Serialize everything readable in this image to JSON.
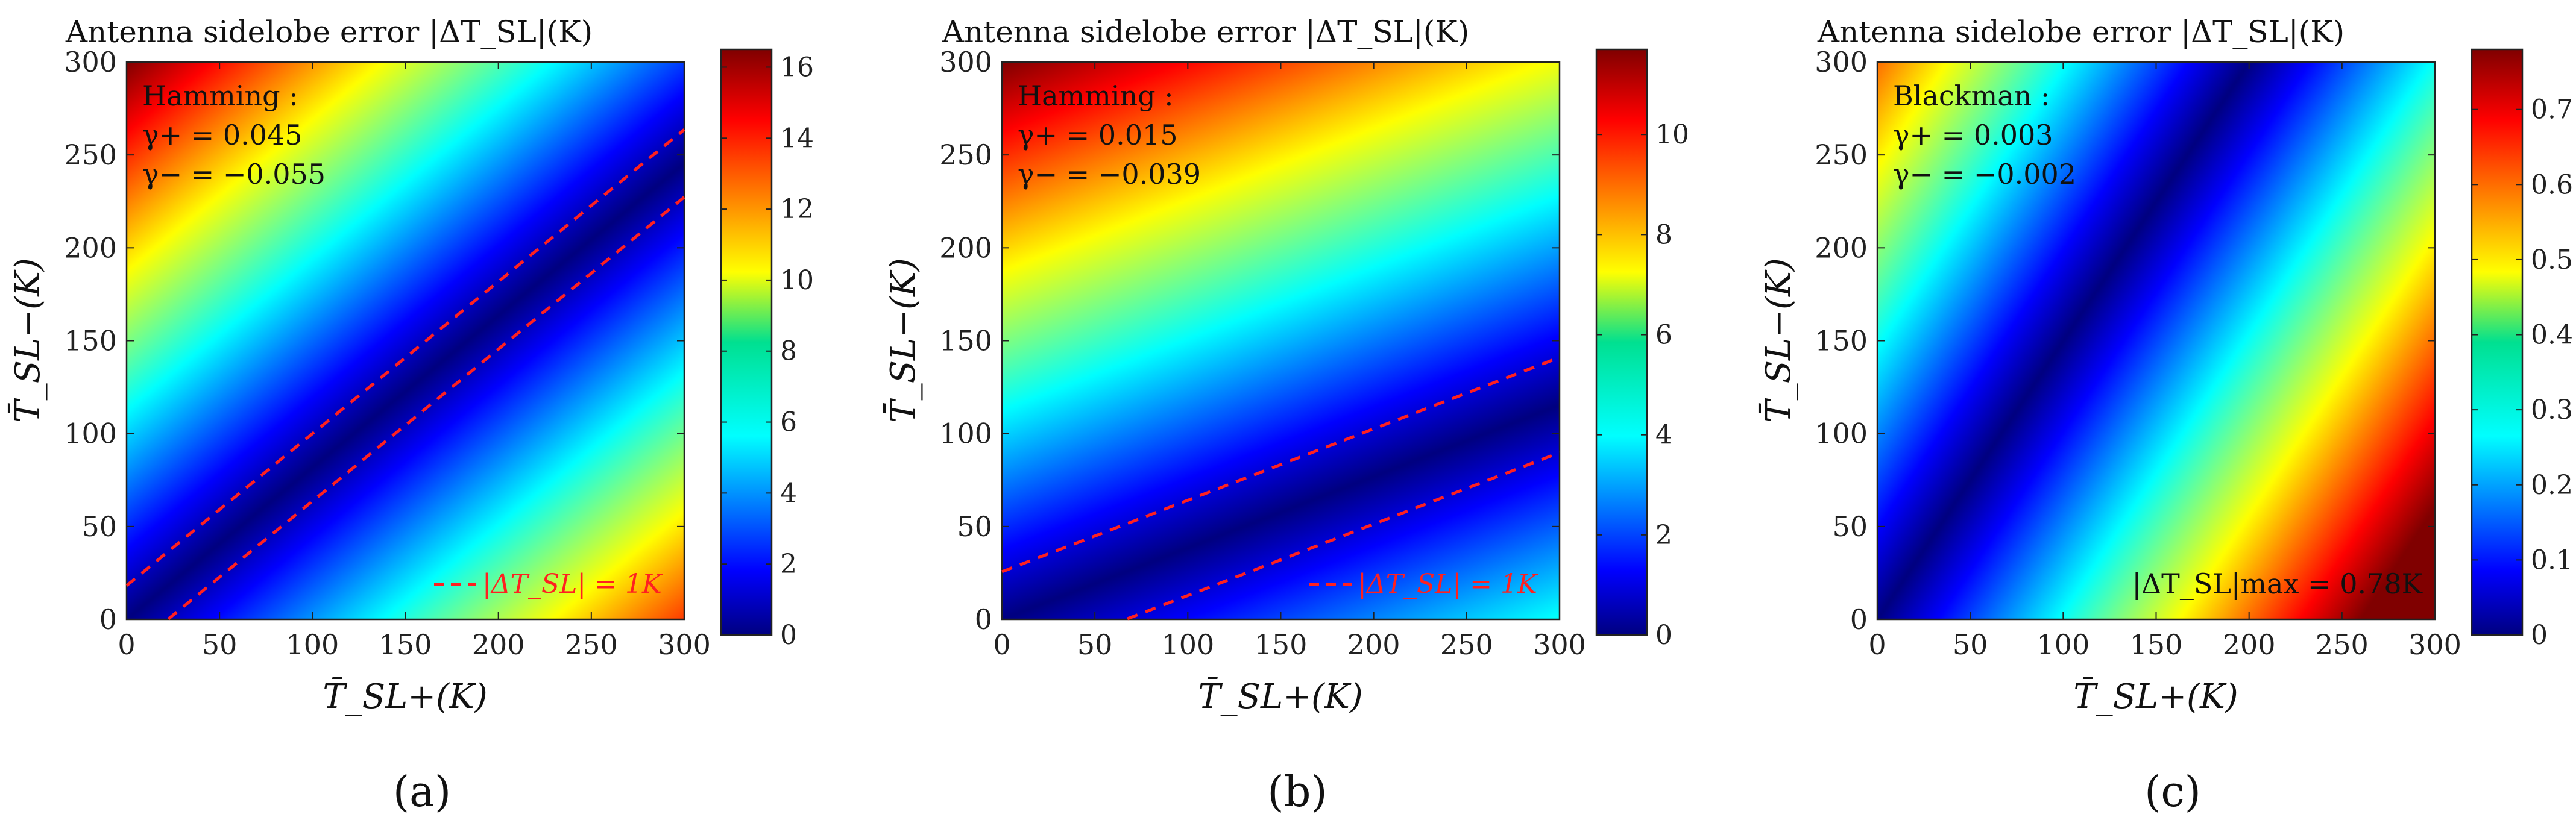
{
  "chart_data": [
    {
      "type": "heatmap",
      "panel_label": "(a)",
      "title": "Antenna sidelobe error |ΔT_SL|(K)",
      "xlabel": "T̄_SL+(K)",
      "ylabel": "T̄_SL−(K)",
      "xlim": [
        0,
        300
      ],
      "ylim": [
        0,
        300
      ],
      "xticks": [
        "0",
        "50",
        "100",
        "150",
        "200",
        "250",
        "300"
      ],
      "yticks": [
        "0",
        "50",
        "100",
        "150",
        "200",
        "250",
        "300"
      ],
      "window": "Hamming",
      "annotation": [
        "Hamming :",
        "γ+ = 0.045",
        "γ− = −0.055"
      ],
      "gamma_plus": 0.045,
      "gamma_minus": -0.055,
      "colorbar": {
        "min": 0,
        "max": 16.5,
        "ticks": [
          "0",
          "2",
          "4",
          "6",
          "8",
          "10",
          "12",
          "14",
          "16"
        ]
      },
      "contour_level": 1,
      "legend": "|ΔT_SL| = 1K",
      "legend_position": "bottom-right"
    },
    {
      "type": "heatmap",
      "panel_label": "(b)",
      "title": "Antenna sidelobe error |ΔT_SL|(K)",
      "xlabel": "T̄_SL+(K)",
      "ylabel": "T̄_SL−(K)",
      "xlim": [
        0,
        300
      ],
      "ylim": [
        0,
        300
      ],
      "xticks": [
        "0",
        "50",
        "100",
        "150",
        "200",
        "250",
        "300"
      ],
      "yticks": [
        "0",
        "50",
        "100",
        "150",
        "200",
        "250",
        "300"
      ],
      "window": "Hamming",
      "annotation": [
        "Hamming :",
        "γ+ = 0.015",
        "γ− = −0.039"
      ],
      "gamma_plus": 0.015,
      "gamma_minus": -0.039,
      "colorbar": {
        "min": 0,
        "max": 11.7,
        "ticks": [
          "0",
          "2",
          "4",
          "6",
          "8",
          "10"
        ]
      },
      "contour_level": 1,
      "legend": "|ΔT_SL| = 1K",
      "legend_position": "bottom-right"
    },
    {
      "type": "heatmap",
      "panel_label": "(c)",
      "title": "Antenna sidelobe error |ΔT_SL|(K)",
      "xlabel": "T̄_SL+(K)",
      "ylabel": "T̄_SL−(K)",
      "xlim": [
        0,
        300
      ],
      "ylim": [
        0,
        300
      ],
      "xticks": [
        "0",
        "50",
        "100",
        "150",
        "200",
        "250",
        "300"
      ],
      "yticks": [
        "0",
        "50",
        "100",
        "150",
        "200",
        "250",
        "300"
      ],
      "window": "Blackman",
      "annotation": [
        "Blackman :",
        "γ+ = 0.003",
        "γ− = −0.002"
      ],
      "gamma_plus": 0.003,
      "gamma_minus": -0.002,
      "colorbar": {
        "min": 0,
        "max": 0.78,
        "ticks": [
          "0",
          "0.1",
          "0.2",
          "0.3",
          "0.4",
          "0.5",
          "0.6",
          "0.7"
        ]
      },
      "max_label": "|ΔT_SL|max = 0.78K",
      "max_value": 0.78
    }
  ]
}
